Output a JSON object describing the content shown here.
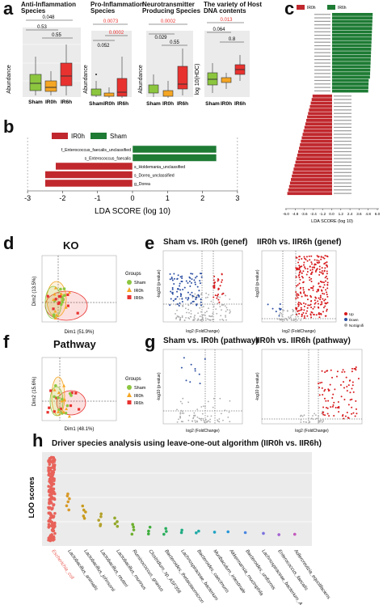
{
  "panel_labels": {
    "a": "a",
    "b": "b",
    "c": "c",
    "d": "d",
    "e": "e",
    "f": "f",
    "g": "g",
    "h": "h"
  },
  "panel_a": {
    "ylabel_abundance": "Abundance",
    "ylabel_hdc": "log 10(HDC)",
    "groups": [
      "Sham",
      "IR0h",
      "IR6h"
    ],
    "colors": {
      "sham": "#8cc63f",
      "ir0h": "#f5a623",
      "ir6h": "#e8322f"
    },
    "subplots": [
      {
        "title": "Anti-Inflammation Species",
        "p_top": "0.048",
        "p_mid": "0.53",
        "p_low": "0.55",
        "p_top_red": false
      },
      {
        "title": "Pro-Inflammation Species",
        "p_top": "0.0073",
        "p_mid": "0.0002",
        "p_low": "0.052",
        "p_top_red": true
      },
      {
        "title": "Neurotransmitter Producing Species",
        "p_top": "0.0002",
        "p_mid": "0.029",
        "p_low": "0.55",
        "p_top_red": true
      },
      {
        "title": "The variety of Host DNA contents",
        "p_top": "0.013",
        "p_mid": "0.064",
        "p_low": "0.8",
        "p_top_red": true
      }
    ]
  },
  "panel_b": {
    "legend": [
      {
        "name": "IR0h",
        "color": "#c0282d"
      },
      {
        "name": "Sham",
        "color": "#1e7b34"
      }
    ],
    "xlabel": "LDA SCORE (log 10)",
    "ticks": [
      "-3",
      "-2",
      "-1",
      "0",
      "1",
      "2",
      "3"
    ],
    "bars": [
      {
        "label": "f_Enterococcus_faecalis_unclassified",
        "value": 2.4,
        "group": "sham"
      },
      {
        "label": "s_Enterococcus_faecalis",
        "value": 2.4,
        "group": "sham"
      },
      {
        "label": "s_Holdemania_unclassified",
        "value": -2.2,
        "group": "ir0h"
      },
      {
        "label": "s_Dorea_unclassified",
        "value": -2.5,
        "group": "ir0h"
      },
      {
        "label": "g_Dorea",
        "value": -2.5,
        "group": "ir0h"
      }
    ]
  },
  "panel_c": {
    "legend": [
      {
        "name": "IR0h",
        "color": "#c0282d"
      },
      {
        "name": "IR6h",
        "color": "#1e7b34"
      }
    ],
    "xlabel": "LDA SCORE (log 10)",
    "ticks": [
      "-6.0",
      "-4.8",
      "-3.6",
      "-2.4",
      "-1.2",
      "0.0",
      "1.2",
      "2.4",
      "3.6",
      "4.8",
      "6.0"
    ],
    "green_count": 23,
    "red_count": 29
  },
  "panel_d": {
    "side_title": "KO",
    "xlabel": "Dim1 (51.9%)",
    "ylabel": "Dim2 (13.5%)",
    "legend_title": "Groups",
    "legend": [
      "Sham",
      "IR0h",
      "IR6h"
    ]
  },
  "panel_e": {
    "title_left": "Sham vs. IR0h (genef)",
    "title_right": "IIR0h vs. IIR6h (genef)",
    "xlabel": "log2 (FoldChange)",
    "ylabel": "-log10 (p-value)",
    "legend": [
      {
        "name": "Up",
        "color": "#d7191c"
      },
      {
        "name": "Down",
        "color": "#2c4fa3"
      },
      {
        "name": "NoSignifi",
        "color": "#aaaaaa"
      }
    ]
  },
  "panel_f": {
    "side_title": "Pathway",
    "xlabel": "Dim1 (48.1%)",
    "ylabel": "Dim2 (15.6%)",
    "legend_title": "Groups",
    "legend": [
      "Sham",
      "IR0h",
      "IR6h"
    ]
  },
  "panel_g": {
    "title_left": "Sham vs. IR0h (pathway)",
    "title_right": "IIR0h vs. IIR6h (pathway)",
    "xlabel": "log2 (FoldChange)",
    "ylabel": "-log10 (p-value)"
  },
  "panel_h": {
    "title": "Driver species analysis using leave-one-out algorithm (IIR0h vs. IIR6h)",
    "ylabel": "LOO scores",
    "species": [
      {
        "name": "Escherichia_coli",
        "color": "#e8625a"
      },
      {
        "name": "Lactobacillus_animalis",
        "color": "#d89a2a"
      },
      {
        "name": "Lactobacillus_johnsonii",
        "color": "#c99b1f"
      },
      {
        "name": "Lactobacillus_reuteri",
        "color": "#b3a12a"
      },
      {
        "name": "Lactobacillus_murinus",
        "color": "#93a92a"
      },
      {
        "name": "Ruminococcus_gnavus",
        "color": "#6daf2e"
      },
      {
        "name": "Clostridium_sp_ASF356",
        "color": "#3eae3b"
      },
      {
        "name": "Bacteroides_thetaiotaomicron",
        "color": "#2aae5e"
      },
      {
        "name": "Lachnospiraceae_bacterium",
        "color": "#22ac83"
      },
      {
        "name": "Bacteroides_caecimuris",
        "color": "#1faaa6"
      },
      {
        "name": "Muribaculum_intestinale",
        "color": "#1ea3c4"
      },
      {
        "name": "Akkermansia_muciniphila",
        "color": "#2596d8"
      },
      {
        "name": "Bacteroides_uniformis",
        "color": "#4a86e0"
      },
      {
        "name": "Lachnospiraceae_bacterium_A4",
        "color": "#7a72de"
      },
      {
        "name": "Enterococcus_faecalis",
        "color": "#a460d2"
      },
      {
        "name": "Adlercreutzia_equolifaciens",
        "color": "#c458bd"
      }
    ]
  }
}
